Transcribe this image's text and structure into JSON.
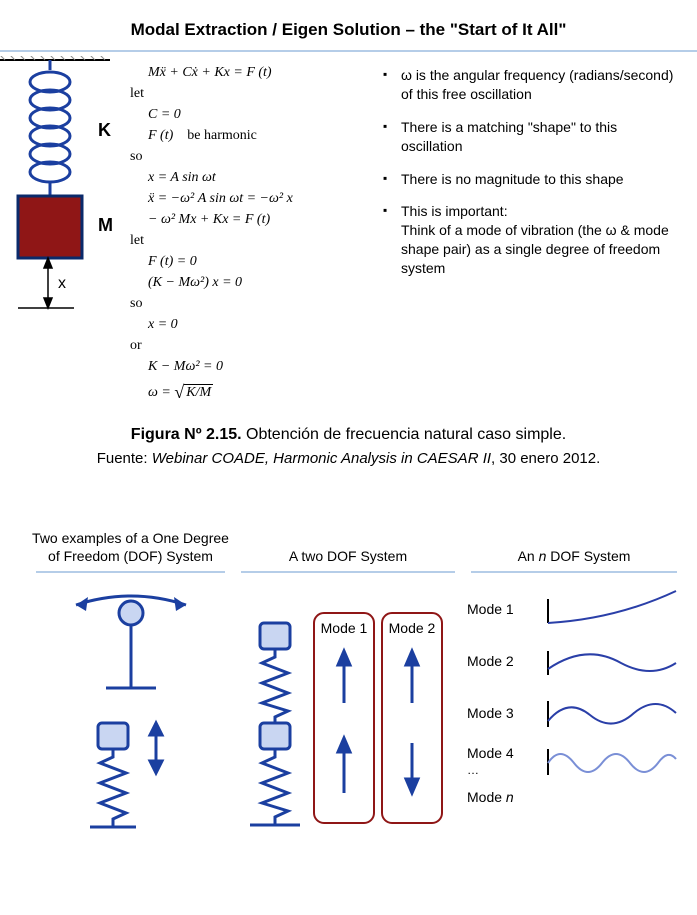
{
  "title": "Modal Extraction / Eigen Solution – the \"Start of It All\"",
  "spring_mass": {
    "K_label": "K",
    "M_label": "M",
    "x_label": "x",
    "colors": {
      "spring": "#1b3fa0",
      "mass_fill": "#8f1616",
      "mass_stroke": "#0a2a6b",
      "hatch": "#888888"
    }
  },
  "equations": {
    "l1": "Mẍ + Cẋ + Kx = F (t)",
    "l2": "let",
    "l3": "C = 0",
    "l4a": "F (t)",
    "l4b": "be harmonic",
    "l5": "so",
    "l6": "x = A sin ωt",
    "l7": "ẍ = −ω² A sin ωt = −ω² x",
    "l8": "− ω² Mx + Kx = F (t)",
    "l9": "let",
    "l10": "F (t) = 0",
    "l11": "(K − Mω²) x = 0",
    "l12": "so",
    "l13": "x = 0",
    "l14": "or",
    "l15": "K − Mω² = 0",
    "l16a": "ω = ",
    "l16b": "K/M"
  },
  "notes": [
    "ω is the angular frequency (radians/second) of this free oscillation",
    "There is a matching \"shape\" to this oscillation",
    "There is no magnitude to this shape",
    "This is important:\nThink of a mode of vibration (the ω & mode shape pair) as a single degree of freedom system"
  ],
  "caption": {
    "bold": "Figura Nº 2.15.",
    "rest": " Obtención de frecuencia natural caso simple."
  },
  "source": {
    "pre": "Fuente: ",
    "ital": "Webinar COADE, Harmonic Analysis in CAESAR II",
    "post": ", 30 enero 2012."
  },
  "bottom": {
    "col1_head": "Two examples of a One Degree of Freedom (DOF) System",
    "col2_head": "A two DOF System",
    "col3_head": "An n DOF System",
    "mode1_box": "Mode 1",
    "mode2_box": "Mode 2",
    "modes": [
      "Mode 1",
      "Mode 2",
      "Mode 3",
      "Mode 4",
      "Mode n"
    ],
    "dots": "…",
    "colors": {
      "stroke": "#1b3fa0",
      "mass_fill": "#c9d6f2",
      "box_stroke": "#8f1616",
      "shape_stroke": "#2a3fa8"
    }
  }
}
